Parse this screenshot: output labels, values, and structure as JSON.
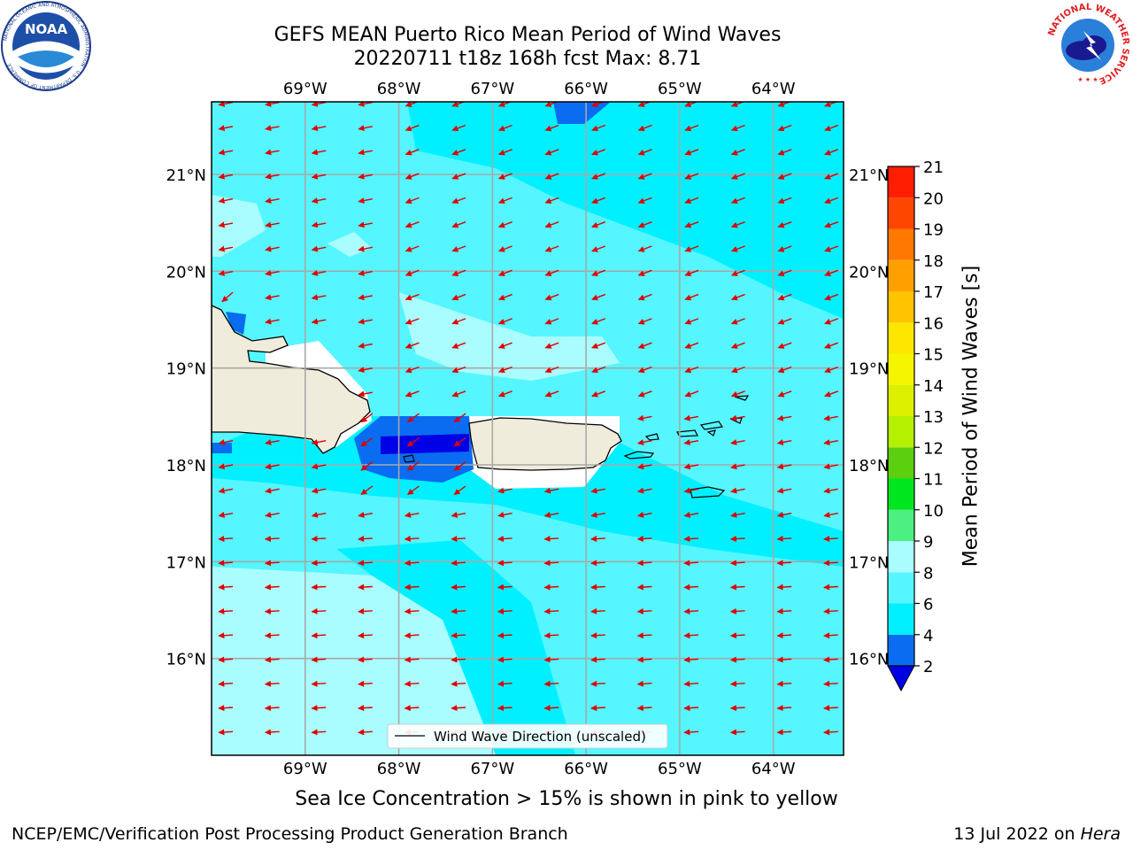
{
  "title": {
    "line1": "GEFS MEAN Puerto Rico Mean Period of Wind Waves",
    "line2": "20220711 t18z 168h fcst   Max: 8.71"
  },
  "logos": {
    "left": {
      "icon": "noaa-logo",
      "text": "NOAA",
      "ring_text": "NATIONAL OCEANIC AND ATMOSPHERIC ADMINISTRATION · U.S. DEPARTMENT OF COMMERCE"
    },
    "right": {
      "icon": "nws-logo",
      "ring_text": "NATIONAL WEATHER SERVICE"
    }
  },
  "map": {
    "lon_labels": [
      "69°W",
      "68°W",
      "67°W",
      "66°W",
      "65°W",
      "64°W"
    ],
    "lat_labels": [
      "21°N",
      "20°N",
      "19°N",
      "18°N",
      "17°N",
      "16°N"
    ],
    "lon_range": [
      -70.0,
      -63.25
    ],
    "lat_range": [
      15.0,
      21.75
    ],
    "legend_label": "Wind Wave Direction (unscaled)",
    "arrow_direction": "toward west-southwest",
    "land_color": "#efecdc",
    "arrow_color": "#e00000"
  },
  "colorbar": {
    "title": "Mean Period of Wind Waves [s]",
    "tick_labels": [
      "2",
      "4",
      "6",
      "8",
      "9",
      "10",
      "11",
      "12",
      "13",
      "14",
      "15",
      "16",
      "17",
      "18",
      "19",
      "20",
      "21"
    ],
    "bins": [
      {
        "from": 2,
        "to": 4,
        "color": "#0a6cf0"
      },
      {
        "from": 4,
        "to": 6,
        "color": "#00f0ff"
      },
      {
        "from": 6,
        "to": 8,
        "color": "#55f6ff"
      },
      {
        "from": 8,
        "to": 9,
        "color": "#aafdff"
      },
      {
        "from": 9,
        "to": 10,
        "color": "#4bf080"
      },
      {
        "from": 10,
        "to": 11,
        "color": "#00e61e"
      },
      {
        "from": 11,
        "to": 12,
        "color": "#5ad00f"
      },
      {
        "from": 12,
        "to": 13,
        "color": "#b4f000"
      },
      {
        "from": 13,
        "to": 14,
        "color": "#dcf000"
      },
      {
        "from": 14,
        "to": 15,
        "color": "#f5f500"
      },
      {
        "from": 15,
        "to": 16,
        "color": "#ffe600"
      },
      {
        "from": 16,
        "to": 17,
        "color": "#ffc300"
      },
      {
        "from": 17,
        "to": 18,
        "color": "#ffa000"
      },
      {
        "from": 18,
        "to": 19,
        "color": "#ff7800"
      },
      {
        "from": 19,
        "to": 20,
        "color": "#ff4600"
      },
      {
        "from": 20,
        "to": 21,
        "color": "#ff1e00"
      }
    ],
    "under_color": "#0000e6"
  },
  "footer": {
    "note": "Sea Ice Concentration > 15% is shown in pink to yellow",
    "left": "NCEP/EMC/Verification Post Processing Product Generation Branch",
    "right_prefix": "13 Jul 2022 on ",
    "right_host": "Hera"
  }
}
